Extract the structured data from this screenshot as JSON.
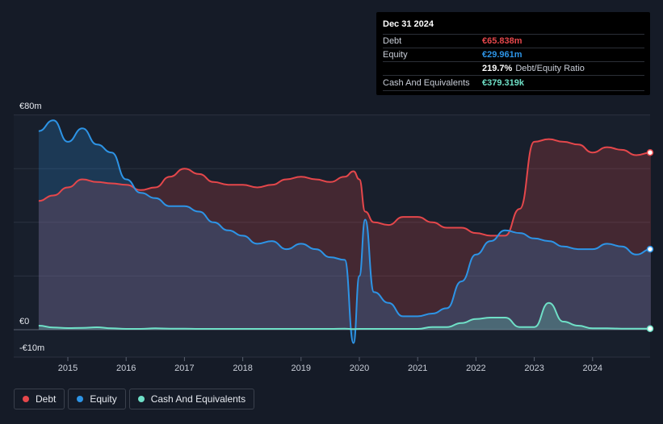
{
  "chart_data": {
    "type": "area",
    "y_axis": {
      "top_label": "€80m",
      "zero_label": "€0",
      "bottom_label": "-€10m",
      "ylim": [
        -10,
        80
      ]
    },
    "x": [
      2014.5,
      2014.75,
      2015.0,
      2015.25,
      2015.5,
      2015.75,
      2016.0,
      2016.25,
      2016.5,
      2016.75,
      2017.0,
      2017.25,
      2017.5,
      2017.75,
      2018.0,
      2018.25,
      2018.5,
      2018.75,
      2019.0,
      2019.25,
      2019.5,
      2019.75,
      2019.9,
      2020.0,
      2020.1,
      2020.25,
      2020.5,
      2020.75,
      2021.0,
      2021.25,
      2021.5,
      2021.75,
      2022.0,
      2022.25,
      2022.5,
      2022.75,
      2023.0,
      2023.25,
      2023.5,
      2023.75,
      2024.0,
      2024.25,
      2024.5,
      2024.75,
      2025.0
    ],
    "x_ticks": [
      "2015",
      "2016",
      "2017",
      "2018",
      "2019",
      "2020",
      "2021",
      "2022",
      "2023",
      "2024"
    ],
    "series": [
      {
        "name": "Debt",
        "color": "#e5474b",
        "values": [
          48,
          50,
          53,
          56,
          55,
          54.5,
          54,
          52,
          53,
          57,
          60,
          58,
          55,
          54,
          54,
          53,
          54,
          56,
          57,
          56,
          55,
          57,
          59,
          56,
          44,
          40,
          39,
          42,
          42,
          40,
          38,
          38,
          36,
          35,
          35,
          45,
          70,
          71,
          70,
          69,
          66,
          68,
          67,
          65,
          66
        ]
      },
      {
        "name": "Equity",
        "color": "#2d94e6",
        "values": [
          74,
          78,
          70,
          75,
          69,
          66,
          56,
          51,
          49,
          46,
          46,
          44,
          40,
          37,
          35,
          32,
          33,
          30,
          32,
          30,
          27,
          26,
          -5,
          20,
          41,
          14,
          10,
          5,
          5,
          6,
          8,
          18,
          28,
          33,
          37,
          36,
          34,
          33,
          31,
          30,
          30,
          32,
          31,
          28,
          30
        ]
      },
      {
        "name": "Cash And Equivalents",
        "color": "#6fe0c7",
        "values": [
          1.5,
          0.8,
          0.6,
          0.7,
          0.9,
          0.5,
          0.3,
          0.3,
          0.5,
          0.4,
          0.4,
          0.3,
          0.3,
          0.3,
          0.3,
          0.3,
          0.3,
          0.3,
          0.3,
          0.3,
          0.3,
          0.4,
          0.2,
          0.3,
          0.3,
          0.3,
          0.3,
          0.3,
          0.3,
          1.0,
          1.0,
          2.5,
          4.0,
          4.5,
          4.5,
          1.0,
          1.0,
          10.0,
          3.0,
          1.5,
          0.5,
          0.5,
          0.4,
          0.4,
          0.38
        ]
      }
    ]
  },
  "tooltip": {
    "date": "Dec 31 2024",
    "rows": [
      {
        "label": "Debt",
        "value": "€65.838m",
        "color": "#e5474b"
      },
      {
        "label": "Equity",
        "value": "€29.961m",
        "color": "#2d94e6"
      },
      {
        "label": "",
        "value": "219.7%",
        "suffix": "Debt/Equity Ratio",
        "color": "#ffffff"
      },
      {
        "label": "Cash And Equivalents",
        "value": "€379.319k",
        "color": "#6fe0c7"
      }
    ]
  },
  "legend": [
    {
      "label": "Debt",
      "color": "#e5474b"
    },
    {
      "label": "Equity",
      "color": "#2d94e6"
    },
    {
      "label": "Cash And Equivalents",
      "color": "#6fe0c7"
    }
  ]
}
